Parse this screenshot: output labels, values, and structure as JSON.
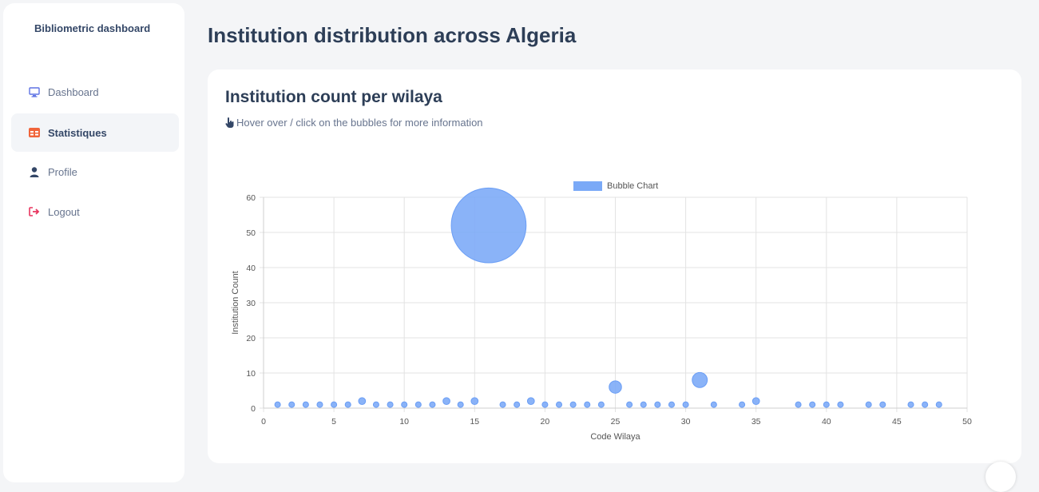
{
  "sidebar": {
    "brand": "Bibliometric dashboard",
    "items": [
      {
        "label": "Dashboard",
        "icon": "monitor-icon",
        "active": false
      },
      {
        "label": "Statistiques",
        "icon": "table-icon",
        "active": true
      },
      {
        "label": "Profile",
        "icon": "user-icon",
        "active": false
      },
      {
        "label": "Logout",
        "icon": "logout-icon",
        "active": false
      }
    ]
  },
  "page": {
    "title": "Institution distribution across Algeria"
  },
  "card": {
    "title": "Institution count per wilaya",
    "hint": "Hover over / click on the bubbles for more information",
    "hint_icon": "pointer-hand-icon"
  },
  "colors": {
    "bubble_fill": "#7aa9f7",
    "bubble_stroke": "#6b9ef5",
    "logout_icon": "#e8355f",
    "table_icon": "#f0643a",
    "monitor_icon": "#5e72e4",
    "user_icon": "#344767"
  },
  "chart_data": {
    "type": "bubble",
    "legend": "Bubble Chart",
    "legend_position": "top-center",
    "xlabel": "Code Wilaya",
    "ylabel": "Institution Count",
    "xlim": [
      0,
      50
    ],
    "ylim": [
      0,
      60
    ],
    "x_ticks": [
      0,
      5,
      10,
      15,
      20,
      25,
      30,
      35,
      40,
      45,
      50
    ],
    "y_ticks": [
      0,
      10,
      20,
      30,
      40,
      50,
      60
    ],
    "grid": true,
    "points": [
      {
        "x": 1,
        "y": 1
      },
      {
        "x": 2,
        "y": 1
      },
      {
        "x": 3,
        "y": 1
      },
      {
        "x": 4,
        "y": 1
      },
      {
        "x": 5,
        "y": 1
      },
      {
        "x": 6,
        "y": 1
      },
      {
        "x": 7,
        "y": 2
      },
      {
        "x": 8,
        "y": 1
      },
      {
        "x": 9,
        "y": 1
      },
      {
        "x": 10,
        "y": 1
      },
      {
        "x": 11,
        "y": 1
      },
      {
        "x": 12,
        "y": 1
      },
      {
        "x": 13,
        "y": 2
      },
      {
        "x": 14,
        "y": 1
      },
      {
        "x": 15,
        "y": 2
      },
      {
        "x": 16,
        "y": 52
      },
      {
        "x": 17,
        "y": 1
      },
      {
        "x": 18,
        "y": 1
      },
      {
        "x": 19,
        "y": 2
      },
      {
        "x": 20,
        "y": 1
      },
      {
        "x": 21,
        "y": 1
      },
      {
        "x": 22,
        "y": 1
      },
      {
        "x": 23,
        "y": 1
      },
      {
        "x": 24,
        "y": 1
      },
      {
        "x": 25,
        "y": 6
      },
      {
        "x": 26,
        "y": 1
      },
      {
        "x": 27,
        "y": 1
      },
      {
        "x": 28,
        "y": 1
      },
      {
        "x": 29,
        "y": 1
      },
      {
        "x": 30,
        "y": 1
      },
      {
        "x": 31,
        "y": 8
      },
      {
        "x": 32,
        "y": 1
      },
      {
        "x": 34,
        "y": 1
      },
      {
        "x": 35,
        "y": 2
      },
      {
        "x": 38,
        "y": 1
      },
      {
        "x": 39,
        "y": 1
      },
      {
        "x": 40,
        "y": 1
      },
      {
        "x": 41,
        "y": 1
      },
      {
        "x": 43,
        "y": 1
      },
      {
        "x": 44,
        "y": 1
      },
      {
        "x": 46,
        "y": 1
      },
      {
        "x": 47,
        "y": 1
      },
      {
        "x": 48,
        "y": 1
      }
    ]
  }
}
